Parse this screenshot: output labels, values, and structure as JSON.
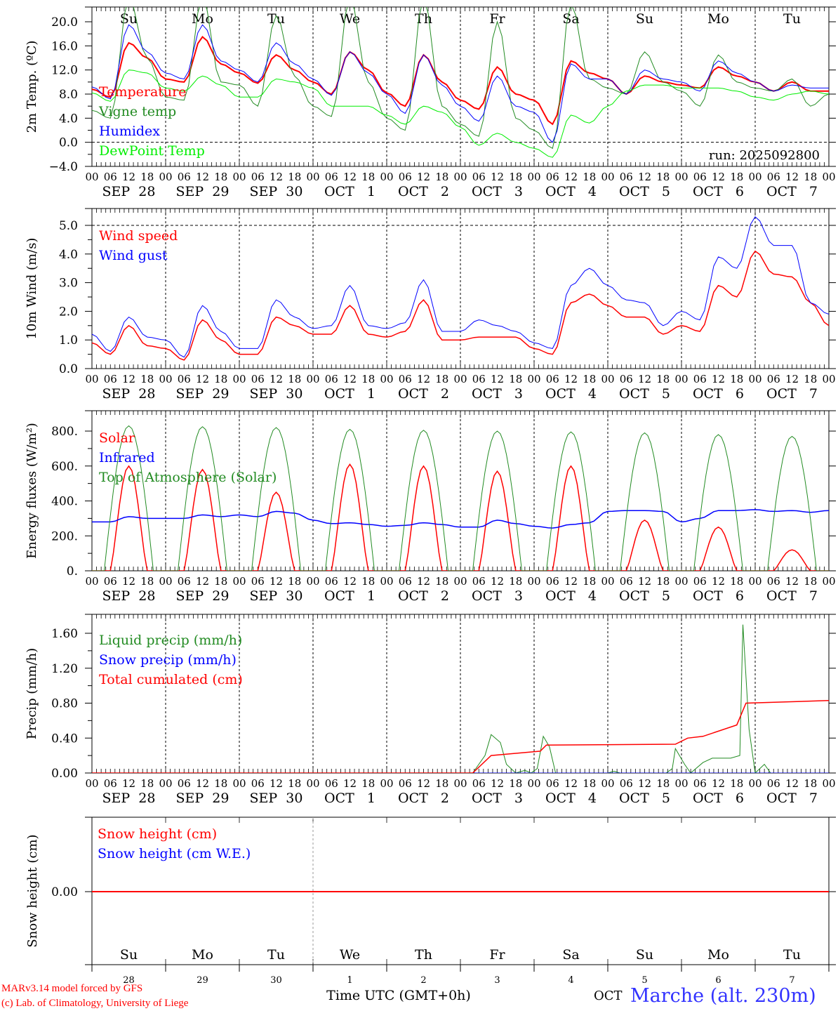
{
  "colors": {
    "red": "#ff0000",
    "green": "#228b22",
    "blue": "#0000ff",
    "lightgreen": "#00ee00",
    "weekend": "#ff0000",
    "weekday": "#000000"
  },
  "days": [
    {
      "name": "Su",
      "date": "SEP  28",
      "num": "28",
      "weekend": true
    },
    {
      "name": "Mo",
      "date": "SEP  29",
      "num": "29",
      "weekend": false
    },
    {
      "name": "Tu",
      "date": "SEP  30",
      "num": "30",
      "weekend": false
    },
    {
      "name": "We",
      "date": "OCT   1",
      "num": "1",
      "weekend": false
    },
    {
      "name": "Th",
      "date": "OCT   2",
      "num": "2",
      "weekend": false
    },
    {
      "name": "Fr",
      "date": "OCT   3",
      "num": "3",
      "weekend": false
    },
    {
      "name": "Sa",
      "date": "OCT   4",
      "num": "4",
      "weekend": true
    },
    {
      "name": "Su",
      "date": "OCT   5",
      "num": "5",
      "weekend": true
    },
    {
      "name": "Mo",
      "date": "OCT   6",
      "num": "6",
      "weekend": false
    },
    {
      "name": "Tu",
      "date": "OCT   7",
      "num": "7",
      "weekend": false
    }
  ],
  "hour_labels": [
    "00",
    "06",
    "12",
    "18"
  ],
  "footer": {
    "credit1": "MARv3.14 model forced by GFS",
    "credit2": "(c) Lab. of Climatology, University of Liege",
    "xlabel": "Time UTC (GMT+0h)",
    "month": "OCT",
    "station": "Marche (alt. 230m)"
  },
  "chart_data": [
    {
      "type": "line",
      "ylabel": "2m Temp. (ºC)",
      "ylim": [
        -4,
        22.4
      ],
      "yticks": [
        "20.0",
        "16.0",
        "12.0",
        "8.0",
        "4.0",
        "0.0",
        "−4.0"
      ],
      "ytick_values": [
        20,
        16,
        12,
        8,
        4,
        0,
        -4
      ],
      "hline": 0,
      "annotation": "run: 2025092800",
      "x_step_hours": 6,
      "series": [
        {
          "name": "Temperature",
          "color": "red",
          "width": 2,
          "values": [
            8.8,
            7.5,
            16.5,
            14,
            10.5,
            10,
            17.5,
            13,
            11.5,
            9.8,
            14.5,
            12,
            10,
            8,
            15,
            12,
            8.2,
            6,
            14.5,
            10,
            7,
            5.5,
            12.5,
            8,
            7,
            3,
            13.5,
            11.5,
            10.5,
            8,
            11,
            10,
            9.5,
            9,
            12.5,
            11,
            10,
            8.5,
            10,
            8.5,
            8.5
          ]
        },
        {
          "name": "Vigne temp",
          "color": "green",
          "width": 1,
          "values": [
            5.3,
            4,
            24,
            14,
            7.5,
            7,
            24,
            10,
            9.5,
            6,
            21,
            11,
            6,
            4.3,
            24,
            10,
            4,
            2,
            24,
            6,
            3,
            1,
            20,
            4,
            2,
            -1,
            23,
            10.5,
            9,
            8,
            15,
            10,
            8.5,
            6,
            14.5,
            10,
            9,
            8.5,
            10.5,
            6,
            8
          ]
        },
        {
          "name": "Humidex",
          "color": "blue",
          "width": 1,
          "values": [
            9.2,
            7.2,
            19.5,
            15,
            11.5,
            10.5,
            19.5,
            13.5,
            12,
            10,
            16.5,
            13,
            10.5,
            7.8,
            15,
            11.5,
            8,
            4.8,
            14.5,
            9.5,
            6,
            3.5,
            11,
            6,
            5,
            0,
            13,
            10.5,
            10.5,
            8,
            12,
            10.5,
            10,
            8.5,
            13.5,
            11.5,
            10,
            8.5,
            9.5,
            9,
            9
          ]
        },
        {
          "name": "DewPoint Temp",
          "color": "lightgreen",
          "width": 1,
          "values": [
            8.2,
            6.8,
            12,
            11.5,
            9,
            8.5,
            11,
            9.5,
            7.5,
            7.5,
            10.5,
            10,
            9,
            6,
            6,
            6,
            4.5,
            3,
            6,
            5,
            2.5,
            -0.5,
            1.5,
            0,
            -1,
            -2.5,
            4.5,
            3.2,
            6,
            8.5,
            9.5,
            9.5,
            9,
            9,
            9,
            8.5,
            7.5,
            7,
            8,
            8.5,
            8
          ]
        }
      ]
    },
    {
      "type": "line",
      "ylabel": "10m Wind (m/s)",
      "ylim": [
        0,
        5.59
      ],
      "yticks": [
        "5.0",
        "4.0",
        "3.0",
        "2.0",
        "1.0",
        "0.0"
      ],
      "ytick_values": [
        5,
        4,
        3,
        2,
        1,
        0
      ],
      "hline": 5,
      "x_step_hours": 6,
      "series": [
        {
          "name": "Wind speed",
          "color": "red",
          "width": 1.5,
          "values": [
            0.9,
            0.5,
            1.5,
            0.8,
            0.7,
            0.3,
            1.7,
            1.0,
            0.5,
            0.5,
            1.8,
            1.5,
            1.2,
            1.2,
            2.2,
            1.2,
            1.1,
            1.3,
            2.4,
            1.0,
            1.0,
            1.1,
            1.1,
            1.1,
            0.7,
            0.5,
            2.3,
            2.6,
            2.2,
            1.8,
            1.8,
            1.2,
            1.5,
            1.3,
            2.9,
            2.5,
            4.1,
            3.3,
            3.2,
            2.3,
            1.5
          ]
        },
        {
          "name": "Wind gust",
          "color": "blue",
          "width": 1,
          "values": [
            1.2,
            0.6,
            1.8,
            1.1,
            1.0,
            0.4,
            2.2,
            1.3,
            0.7,
            0.7,
            2.4,
            1.8,
            1.4,
            1.5,
            2.9,
            1.5,
            1.4,
            1.6,
            3.1,
            1.3,
            1.3,
            1.7,
            1.5,
            1.3,
            0.9,
            0.7,
            2.9,
            3.5,
            2.9,
            2.4,
            2.3,
            1.5,
            2.0,
            1.7,
            3.9,
            3.5,
            5.3,
            4.3,
            4.3,
            2.3,
            1.9
          ]
        }
      ]
    },
    {
      "type": "line",
      "ylabel": "Energy fluxes (W/m²)",
      "ylim": [
        0,
        917
      ],
      "yticks": [
        "800.",
        "600.",
        "400.",
        "200.",
        "0."
      ],
      "ytick_values": [
        800,
        600,
        400,
        200,
        0
      ],
      "series": [
        {
          "name": "Solar",
          "color": "red",
          "width": 1.5,
          "daily_peaks": [
            600,
            580,
            450,
            610,
            600,
            570,
            600,
            290,
            250,
            120
          ]
        },
        {
          "name": "Infrared",
          "color": "blue",
          "width": 1.5,
          "x_step_hours": 6,
          "values": [
            280,
            280,
            310,
            300,
            300,
            300,
            320,
            310,
            320,
            310,
            340,
            330,
            290,
            270,
            275,
            265,
            255,
            260,
            275,
            265,
            250,
            250,
            290,
            270,
            255,
            245,
            265,
            275,
            340,
            345,
            345,
            340,
            280,
            300,
            345,
            345,
            350,
            340,
            345,
            335,
            345
          ]
        },
        {
          "name": "Top of Atmosphere (Solar)",
          "color": "green",
          "width": 1,
          "daily_peaks": [
            830,
            825,
            820,
            810,
            805,
            800,
            795,
            790,
            780,
            770
          ]
        }
      ]
    },
    {
      "type": "line",
      "ylabel": "Precip (mm/h)",
      "ylim": [
        0,
        1.82
      ],
      "yticks": [
        "1.60",
        "1.20",
        "0.80",
        "0.40",
        "0.00"
      ],
      "ytick_values": [
        1.6,
        1.2,
        0.8,
        0.4,
        0
      ],
      "series": [
        {
          "name": "Liquid precip (mm/h)",
          "color": "green",
          "width": 1,
          "points": [
            [
              0,
              0
            ],
            [
              124,
              0
            ],
            [
              128,
              0.2
            ],
            [
              130,
              0.44
            ],
            [
              133,
              0.35
            ],
            [
              135,
              0.1
            ],
            [
              138,
              0
            ],
            [
              141,
              0.03
            ],
            [
              143,
              0
            ],
            [
              145,
              0.05
            ],
            [
              147,
              0.42
            ],
            [
              149,
              0.3
            ],
            [
              151,
              0
            ],
            [
              168,
              0
            ],
            [
              170,
              0.02
            ],
            [
              172,
              0
            ],
            [
              187,
              0
            ],
            [
              189,
              0.05
            ],
            [
              190,
              0.28
            ],
            [
              193,
              0.1
            ],
            [
              195,
              0
            ],
            [
              199,
              0.12
            ],
            [
              202,
              0.17
            ],
            [
              208,
              0.17
            ],
            [
              211,
              0.2
            ],
            [
              212,
              1.7
            ],
            [
              214,
              0.5
            ],
            [
              216,
              0
            ],
            [
              219,
              0.1
            ],
            [
              221,
              0
            ],
            [
              240,
              0
            ]
          ]
        },
        {
          "name": "Snow precip (mm/h)",
          "color": "blue",
          "width": 1,
          "points": [
            [
              0,
              0
            ],
            [
              240,
              0
            ]
          ]
        },
        {
          "name": "Total cumulated (cm)",
          "color": "red",
          "width": 1.5,
          "points": [
            [
              0,
              0
            ],
            [
              124,
              0
            ],
            [
              130,
              0.2
            ],
            [
              146,
              0.25
            ],
            [
              148,
              0.32
            ],
            [
              190,
              0.33
            ],
            [
              194,
              0.4
            ],
            [
              199,
              0.42
            ],
            [
              210,
              0.55
            ],
            [
              213,
              0.8
            ],
            [
              240,
              0.83
            ]
          ]
        }
      ]
    },
    {
      "type": "line",
      "ylabel": "Snow height (cm)",
      "ylim": [
        -1,
        1
      ],
      "yticks": [
        "0.00"
      ],
      "ytick_values": [
        0
      ],
      "series": [
        {
          "name": "Snow height (cm)",
          "color": "red",
          "width": 2,
          "points": [
            [
              0,
              0
            ],
            [
              240,
              0
            ]
          ]
        },
        {
          "name": "Snow height (cm W.E.)",
          "color": "blue",
          "width": 0,
          "points": [
            [
              0,
              0
            ],
            [
              240,
              0
            ]
          ]
        }
      ]
    }
  ]
}
